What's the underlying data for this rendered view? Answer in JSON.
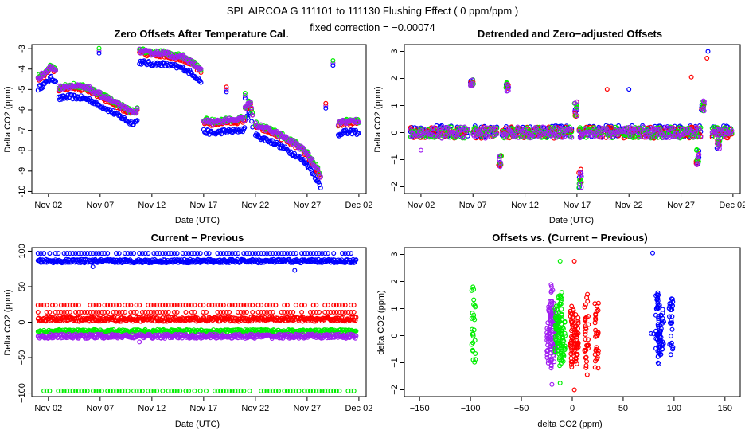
{
  "header": {
    "title": "SPL   AIRCOA G   111101 to 111130   Flushing Effect ( 0 ppm/ppm )",
    "subtitle": "fixed correction = −0.00074"
  },
  "colors": {
    "blue": "#0000ff",
    "red": "#ff0000",
    "green": "#00ee00",
    "purple": "#a020f0"
  },
  "chart_data": [
    {
      "id": "p1",
      "type": "scatter",
      "title": "Zero Offsets After Temperature Cal.",
      "xlabel": "Date (UTC)",
      "ylabel": "Delta CO2 (ppm)",
      "xlim": [
        -0.6,
        31.7
      ],
      "ylim": [
        -10.1,
        -2.8
      ],
      "xticks": [
        1,
        6,
        11,
        16,
        21,
        26,
        31
      ],
      "xtick_labels": [
        "Nov 02",
        "Nov 07",
        "Nov 12",
        "Nov 17",
        "Nov 22",
        "Nov 27",
        "Dec 02"
      ],
      "yticks": [
        -3,
        -4,
        -5,
        -6,
        -7,
        -8,
        -9,
        -10
      ],
      "ytick_labels": [
        "-3",
        "-4",
        "-5",
        "-6",
        "-7",
        "-8",
        "-9",
        "-10"
      ],
      "segments": [
        {
          "x": [
            0.0,
            0.6,
            1.2,
            1.8
          ],
          "y": [
            -4.5,
            -4.3,
            -4.0,
            -4.1
          ]
        },
        {
          "x": [
            2.0,
            3.0,
            4.0,
            5.0,
            5.8
          ],
          "y": [
            -5.0,
            -4.9,
            -4.95,
            -5.05,
            -5.3
          ]
        },
        {
          "x": [
            5.9,
            7.0,
            8.0,
            9.0,
            9.6
          ],
          "y": [
            -5.3,
            -5.6,
            -5.9,
            -6.2,
            -6.1
          ]
        },
        {
          "x": [
            9.8,
            11.0,
            12.0,
            13.0,
            14.0,
            15.0,
            15.8
          ],
          "y": [
            -3.2,
            -3.3,
            -3.3,
            -3.4,
            -3.5,
            -3.8,
            -4.2
          ]
        },
        {
          "x": [
            16.0,
            17.0,
            18.0,
            19.0,
            20.0
          ],
          "y": [
            -6.6,
            -6.7,
            -6.6,
            -6.6,
            -6.5
          ]
        },
        {
          "x": [
            20.0,
            20.5,
            20.8
          ],
          "y": [
            -6.0,
            -5.7,
            -6.5
          ]
        },
        {
          "x": [
            21.0,
            22.0,
            23.0,
            24.0,
            25.0,
            26.0,
            26.5,
            27.0,
            27.3
          ],
          "y": [
            -6.8,
            -7.0,
            -7.2,
            -7.5,
            -7.8,
            -8.2,
            -8.6,
            -9.0,
            -9.4
          ]
        },
        {
          "x": [
            29.0,
            29.5,
            30.0,
            30.5,
            31.0
          ],
          "y": [
            -6.8,
            -6.6,
            -6.7,
            -6.6,
            -6.7
          ]
        }
      ],
      "isolated": [
        {
          "x": 5.9,
          "y": -3.1
        },
        {
          "x": 18.2,
          "y": -5.0
        },
        {
          "x": 20.0,
          "y": -5.3
        },
        {
          "x": 27.8,
          "y": -5.8
        },
        {
          "x": 28.5,
          "y": -3.7
        }
      ],
      "series": [
        {
          "name": "blue",
          "offset": -0.45
        },
        {
          "name": "red",
          "offset": 0.0
        },
        {
          "name": "green",
          "offset": 0.12
        },
        {
          "name": "purple",
          "offset": 0.08
        }
      ]
    },
    {
      "id": "p2",
      "type": "scatter",
      "title": "Detrended and Zero−adjusted Offsets",
      "xlabel": "Date (UTC)",
      "ylabel": "Delta CO2 (ppm)",
      "xlim": [
        -0.6,
        31.7
      ],
      "ylim": [
        -2.25,
        3.25
      ],
      "xticks": [
        1,
        6,
        11,
        16,
        21,
        26,
        31
      ],
      "xtick_labels": [
        "Nov 02",
        "Nov 07",
        "Nov 12",
        "Nov 17",
        "Nov 22",
        "Nov 27",
        "Dec 02"
      ],
      "yticks": [
        3,
        2,
        1,
        0,
        -1,
        -2
      ],
      "ytick_labels": [
        "3",
        "2",
        "1",
        "0",
        "−1",
        "−2"
      ],
      "baseline_spans": [
        [
          0.0,
          5.5
        ],
        [
          6.0,
          8.3
        ],
        [
          8.8,
          15.5
        ],
        [
          16.2,
          28.0
        ],
        [
          29.0,
          31.0
        ]
      ],
      "clusters": [
        {
          "x": 5.9,
          "y": 1.85,
          "spread": 0.12
        },
        {
          "x": 8.6,
          "y": -1.05,
          "spread": 0.25
        },
        {
          "x": 9.3,
          "y": 1.7,
          "spread": 0.2
        },
        {
          "x": 15.9,
          "y": 0.85,
          "spread": 0.3
        },
        {
          "x": 16.3,
          "y": -1.7,
          "spread": 0.35
        },
        {
          "x": 27.6,
          "y": -0.9,
          "spread": 0.3
        },
        {
          "x": 28.1,
          "y": 1.0,
          "spread": 0.2
        },
        {
          "x": 29.6,
          "y": -0.45,
          "spread": 0.15
        }
      ],
      "isolated": [
        {
          "x": 1.0,
          "y": -0.65,
          "series": "purple"
        },
        {
          "x": 18.9,
          "y": 1.6,
          "series": "red"
        },
        {
          "x": 21.0,
          "y": 1.6,
          "series": "blue"
        },
        {
          "x": 27.0,
          "y": 2.05,
          "series": "red"
        },
        {
          "x": 28.6,
          "y": 3.0,
          "series": "blue"
        },
        {
          "x": 28.5,
          "y": 2.75,
          "series": "red"
        }
      ]
    },
    {
      "id": "p3",
      "type": "scatter",
      "title": "Current − Previous",
      "xlabel": "Date (UTC)",
      "ylabel": "Delta CO2 (ppm)",
      "xlim": [
        -0.6,
        31.7
      ],
      "ylim": [
        -105,
        105
      ],
      "xticks": [
        1,
        6,
        11,
        16,
        21,
        26,
        31
      ],
      "xtick_labels": [
        "Nov 02",
        "Nov 07",
        "Nov 12",
        "Nov 17",
        "Nov 22",
        "Nov 27",
        "Dec 02"
      ],
      "yticks": [
        100,
        50,
        0,
        -50,
        -100
      ],
      "ytick_labels": [
        "100",
        "50",
        "0",
        "−50",
        "−100"
      ],
      "x_range": [
        0.0,
        30.8
      ],
      "bands": [
        {
          "series": "blue",
          "y": 86,
          "spread": 2.5,
          "dense": true
        },
        {
          "series": "blue",
          "y": 97,
          "spread": 0,
          "dense": false
        },
        {
          "series": "red",
          "y": 4,
          "spread": 3,
          "dense": true
        },
        {
          "series": "red",
          "y": 14,
          "spread": 0,
          "dense": false
        },
        {
          "series": "red",
          "y": 24,
          "spread": 0,
          "dense": false
        },
        {
          "series": "green",
          "y": -13,
          "spread": 2.5,
          "dense": true
        },
        {
          "series": "green",
          "y": -97,
          "spread": 0,
          "dense": false
        },
        {
          "series": "purple",
          "y": -20,
          "spread": 3,
          "dense": true
        }
      ],
      "isolated": [
        {
          "x": 5.3,
          "y": 78,
          "series": "blue"
        },
        {
          "x": 24.8,
          "y": 73,
          "series": "blue"
        },
        {
          "x": 9.8,
          "y": -28,
          "series": "purple"
        }
      ]
    },
    {
      "id": "p4",
      "type": "scatter",
      "title": "Offsets vs. (Current − Previous)",
      "xlabel": "delta CO2 (ppm)",
      "ylabel": "delta CO2 (ppm)",
      "xlim": [
        -165,
        165
      ],
      "ylim": [
        -2.25,
        3.25
      ],
      "xticks": [
        -150,
        -100,
        -50,
        0,
        50,
        100,
        150
      ],
      "xtick_labels": [
        "−150",
        "−100",
        "−50",
        "0",
        "50",
        "100",
        "150"
      ],
      "yticks": [
        3,
        2,
        1,
        0,
        -1,
        -2
      ],
      "ytick_labels": [
        "3",
        "2",
        "1",
        "0",
        "−1",
        "−2"
      ],
      "columns": [
        {
          "series": "green",
          "x": -97,
          "ymin": -1.35,
          "ymax": 1.95,
          "count": 26
        },
        {
          "series": "purple",
          "x": -23,
          "ymin": -1.1,
          "ymax": 1.45,
          "count": 40
        },
        {
          "series": "purple",
          "x": -20,
          "ymin": -1.75,
          "ymax": 2.0,
          "count": 50
        },
        {
          "series": "purple",
          "x": -17,
          "ymin": -1.0,
          "ymax": 1.2,
          "count": 40
        },
        {
          "series": "green",
          "x": -15,
          "ymin": -0.8,
          "ymax": 1.2,
          "count": 36
        },
        {
          "series": "green",
          "x": -12,
          "ymin": -1.4,
          "ymax": 1.75,
          "count": 45
        },
        {
          "series": "green",
          "x": -9,
          "ymin": -1.0,
          "ymax": 1.0,
          "count": 30
        },
        {
          "series": "red",
          "x": 0,
          "ymin": -1.2,
          "ymax": 1.2,
          "count": 40
        },
        {
          "series": "red",
          "x": 4,
          "ymin": -1.1,
          "ymax": 0.9,
          "count": 40
        },
        {
          "series": "red",
          "x": 14,
          "ymin": -1.75,
          "ymax": 1.85,
          "count": 32
        },
        {
          "series": "red",
          "x": 24,
          "ymin": -1.3,
          "ymax": 1.6,
          "count": 30
        },
        {
          "series": "blue",
          "x": 78,
          "ymin": 0.05,
          "ymax": 0.1,
          "count": 2
        },
        {
          "series": "blue",
          "x": 84,
          "ymin": -1.3,
          "ymax": 1.95,
          "count": 50
        },
        {
          "series": "blue",
          "x": 88,
          "ymin": -1.0,
          "ymax": 1.1,
          "count": 30
        },
        {
          "series": "blue",
          "x": 97,
          "ymin": -0.9,
          "ymax": 1.85,
          "count": 26
        }
      ],
      "isolated": [
        {
          "x": -12,
          "y": 2.75,
          "series": "green"
        },
        {
          "x": 2,
          "y": 2.75,
          "series": "red"
        },
        {
          "x": 2,
          "y": -2.0,
          "series": "red"
        },
        {
          "x": 79,
          "y": 3.05,
          "series": "blue"
        },
        {
          "x": -20,
          "y": -1.8,
          "series": "purple"
        },
        {
          "x": -12,
          "y": -1.75,
          "series": "green"
        }
      ]
    }
  ]
}
